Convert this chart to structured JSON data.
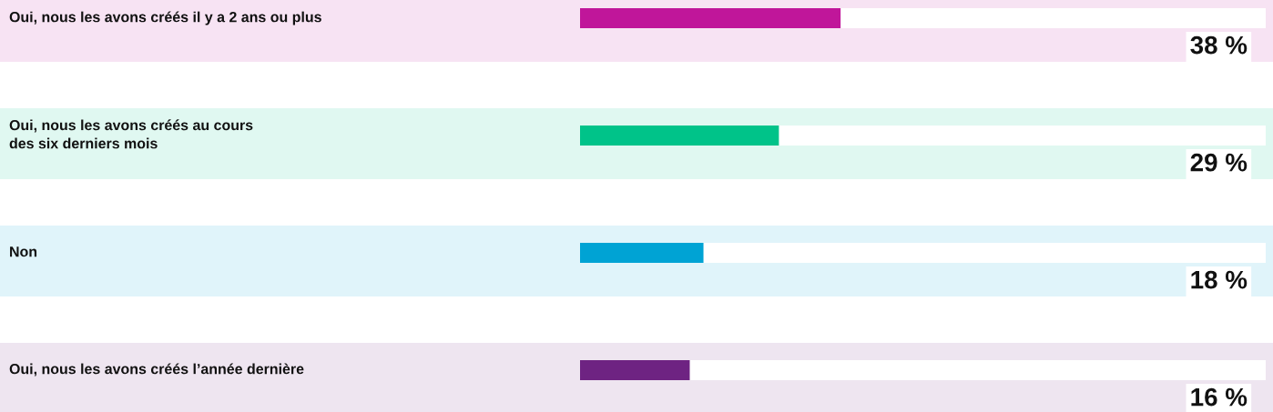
{
  "chart_data": {
    "type": "bar",
    "orientation": "horizontal",
    "categories": [
      "Oui, nous les avons créés il y a 2 ans ou plus",
      "Oui, nous les avons créés au cours\ndes six derniers mois",
      "Non",
      "Oui, nous les avons créés l’année dernière"
    ],
    "values": [
      38,
      29,
      18,
      16
    ],
    "colors": [
      "#c0169a",
      "#00c389",
      "#00a3d4",
      "#6e2382"
    ],
    "value_labels": [
      "38 %",
      "29 %",
      "18 %",
      "16 %"
    ],
    "xlim": [
      0,
      100
    ],
    "tick_labels": false
  }
}
